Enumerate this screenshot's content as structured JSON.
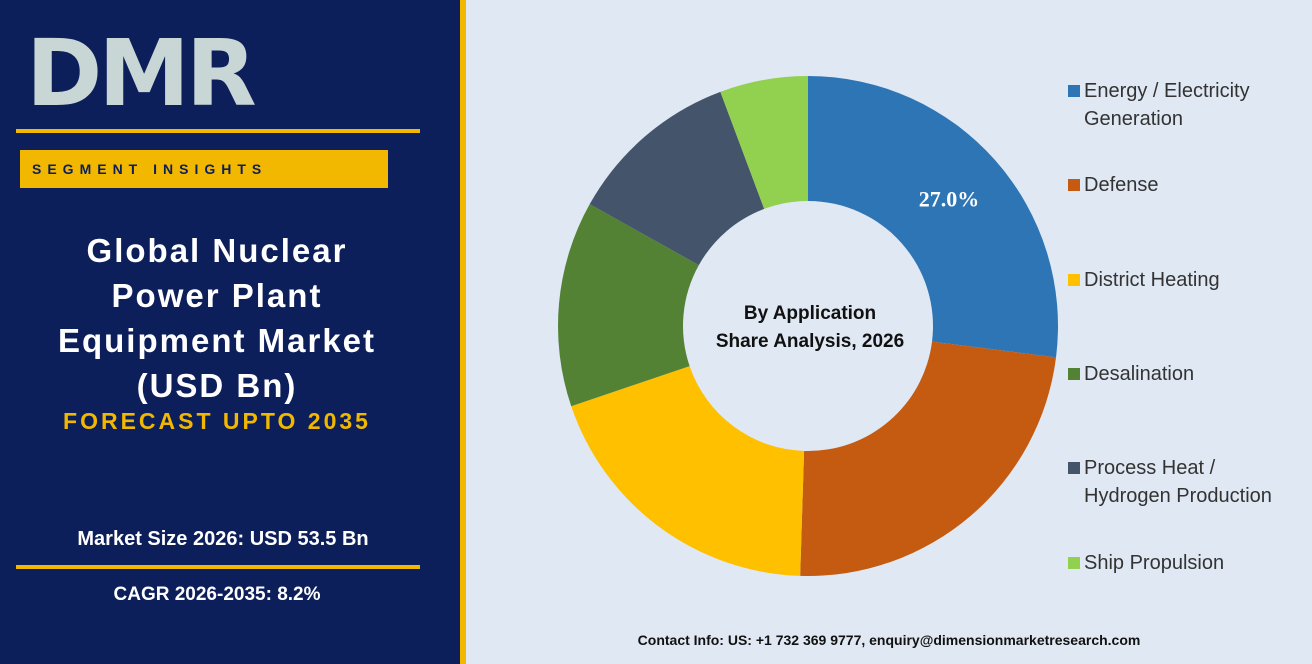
{
  "logo": "DMR",
  "badge": "SEGMENT INSIGHTS",
  "title_lines": [
    "Global Nuclear",
    "Power Plant",
    "Equipment Market",
    "(USD Bn)"
  ],
  "forecast": "FORECAST UPTO 2035",
  "market_size": "Market Size 2026: USD 53.5  Bn",
  "cagr": "CAGR 2026-2035: 8.2%",
  "contact": "Contact Info: US: +1 732 369 9777, enquiry@dimensionmarketresearch.com",
  "chart_data": {
    "type": "donut",
    "center_label": [
      "By Application",
      "Share Analysis, 2026"
    ],
    "categories": [
      "Energy / Electricity Generation",
      "Defense",
      "District Heating",
      "Desalination",
      "Process Heat / Hydrogen Production",
      "Ship Propulsion"
    ],
    "values": [
      27.0,
      23.5,
      19.3,
      13.3,
      11.2,
      5.7
    ],
    "value_labels": [
      "27.0%",
      null,
      null,
      null,
      null,
      null
    ],
    "colors": [
      "#2e75b6",
      "#c55a11",
      "#ffc000",
      "#548235",
      "#44546a",
      "#92d050"
    ],
    "legend": "right"
  }
}
